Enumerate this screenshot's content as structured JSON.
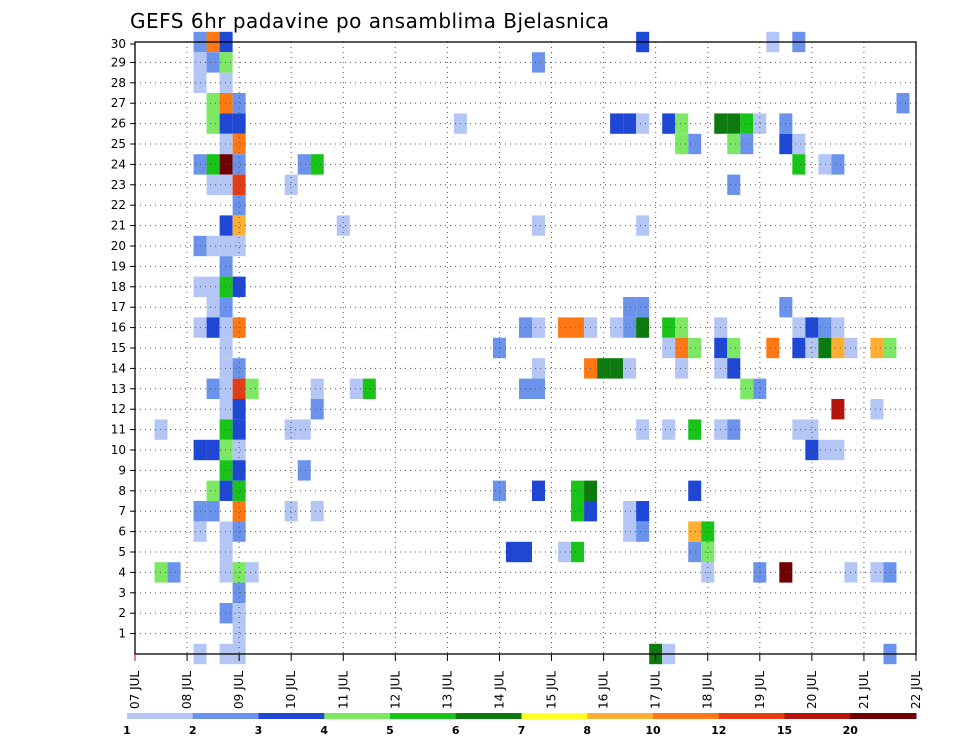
{
  "chart_data": {
    "type": "heatmap",
    "title": "GEFS 6hr padavine po ansamblima Bjelasnica",
    "x_tick_labels": [
      "07 JUL",
      "08 JUL",
      "09 JUL",
      "10 JUL",
      "11 JUL",
      "12 JUL",
      "13 JUL",
      "14 JUL",
      "15 JUL",
      "16 JUL",
      "17 JUL",
      "18 JUL",
      "19 JUL",
      "20 JUL",
      "21 JUL",
      "22 JUL"
    ],
    "y_tick_labels": [
      "1",
      "2",
      "3",
      "4",
      "5",
      "6",
      "7",
      "8",
      "9",
      "10",
      "11",
      "12",
      "13",
      "14",
      "15",
      "16",
      "17",
      "18",
      "19",
      "20",
      "21",
      "22",
      "23",
      "24",
      "25",
      "26",
      "27",
      "28",
      "29",
      "30"
    ],
    "x_range_days": [
      0,
      15
    ],
    "y_range": [
      0,
      30
    ],
    "grid": true,
    "colorbar": {
      "labels": [
        "1",
        "2",
        "3",
        "4",
        "5",
        "6",
        "7",
        "8",
        "10",
        "12",
        "15",
        "20"
      ],
      "colors": [
        "#b3c6f5",
        "#6b93ec",
        "#1f47d6",
        "#7de863",
        "#18c418",
        "#0c7a0c",
        "#ffff22",
        "#ffb032",
        "#ff7814",
        "#e43c14",
        "#b4140c",
        "#700000"
      ]
    },
    "cells": [
      [
        1.25,
        30,
        2
      ],
      [
        1.5,
        30,
        10
      ],
      [
        1.75,
        30,
        3
      ],
      [
        9.75,
        30,
        3
      ],
      [
        12.25,
        30,
        1
      ],
      [
        12.75,
        30,
        2
      ],
      [
        1.25,
        29,
        1
      ],
      [
        1.5,
        29,
        2
      ],
      [
        1.75,
        29,
        4
      ],
      [
        7.75,
        29,
        2
      ],
      [
        1.25,
        28,
        1
      ],
      [
        1.75,
        28,
        1
      ],
      [
        1.5,
        27,
        4
      ],
      [
        1.75,
        27,
        10
      ],
      [
        2.0,
        27,
        2
      ],
      [
        14.75,
        27,
        2
      ],
      [
        1.5,
        26,
        4
      ],
      [
        1.75,
        26,
        3
      ],
      [
        2.0,
        26,
        3
      ],
      [
        6.25,
        26,
        1
      ],
      [
        9.25,
        26,
        3
      ],
      [
        9.5,
        26,
        3
      ],
      [
        9.75,
        26,
        1
      ],
      [
        10.25,
        26,
        3
      ],
      [
        10.5,
        26,
        4
      ],
      [
        11.25,
        26,
        6
      ],
      [
        11.5,
        26,
        6
      ],
      [
        11.75,
        26,
        5
      ],
      [
        12.0,
        26,
        1
      ],
      [
        12.5,
        26,
        2
      ],
      [
        1.75,
        25,
        1
      ],
      [
        2.0,
        25,
        10
      ],
      [
        10.5,
        25,
        4
      ],
      [
        10.75,
        25,
        2
      ],
      [
        11.5,
        25,
        4
      ],
      [
        11.75,
        25,
        2
      ],
      [
        12.5,
        25,
        3
      ],
      [
        12.75,
        25,
        1
      ],
      [
        1.25,
        24,
        2
      ],
      [
        1.5,
        24,
        5
      ],
      [
        1.75,
        24,
        20
      ],
      [
        2.0,
        24,
        2
      ],
      [
        3.25,
        24,
        2
      ],
      [
        3.5,
        24,
        5
      ],
      [
        12.75,
        24,
        5
      ],
      [
        13.25,
        24,
        1
      ],
      [
        13.5,
        24,
        2
      ],
      [
        1.5,
        23,
        1
      ],
      [
        1.75,
        23,
        1
      ],
      [
        2.0,
        23,
        12
      ],
      [
        3.0,
        23,
        1
      ],
      [
        11.5,
        23,
        2
      ],
      [
        2.0,
        22,
        2
      ],
      [
        1.75,
        21,
        3
      ],
      [
        2.0,
        21,
        8
      ],
      [
        4.0,
        21,
        1
      ],
      [
        7.75,
        21,
        1
      ],
      [
        9.75,
        21,
        1
      ],
      [
        1.25,
        20,
        2
      ],
      [
        1.5,
        20,
        1
      ],
      [
        1.75,
        20,
        1
      ],
      [
        2.0,
        20,
        1
      ],
      [
        1.75,
        19,
        2
      ],
      [
        1.25,
        18,
        1
      ],
      [
        1.5,
        18,
        1
      ],
      [
        1.75,
        18,
        5
      ],
      [
        2.0,
        18,
        3
      ],
      [
        1.5,
        17,
        1
      ],
      [
        1.75,
        17,
        2
      ],
      [
        9.5,
        17,
        2
      ],
      [
        9.75,
        17,
        2
      ],
      [
        12.5,
        17,
        2
      ],
      [
        1.25,
        16,
        1
      ],
      [
        1.5,
        16,
        3
      ],
      [
        1.75,
        16,
        1
      ],
      [
        2.0,
        16,
        10
      ],
      [
        7.5,
        16,
        2
      ],
      [
        7.75,
        16,
        1
      ],
      [
        8.25,
        16,
        10
      ],
      [
        8.5,
        16,
        10
      ],
      [
        8.75,
        16,
        1
      ],
      [
        9.25,
        16,
        1
      ],
      [
        9.5,
        16,
        2
      ],
      [
        9.75,
        16,
        6
      ],
      [
        10.25,
        16,
        5
      ],
      [
        10.5,
        16,
        4
      ],
      [
        11.25,
        16,
        1
      ],
      [
        12.75,
        16,
        1
      ],
      [
        13.0,
        16,
        3
      ],
      [
        13.25,
        16,
        2
      ],
      [
        13.5,
        16,
        1
      ],
      [
        1.75,
        15,
        1
      ],
      [
        7.0,
        15,
        2
      ],
      [
        10.25,
        15,
        1
      ],
      [
        10.5,
        15,
        10
      ],
      [
        10.75,
        15,
        4
      ],
      [
        11.25,
        15,
        3
      ],
      [
        11.5,
        15,
        4
      ],
      [
        12.25,
        15,
        10
      ],
      [
        12.75,
        15,
        3
      ],
      [
        13.0,
        15,
        1
      ],
      [
        13.25,
        15,
        6
      ],
      [
        13.5,
        15,
        8
      ],
      [
        13.75,
        15,
        1
      ],
      [
        14.25,
        15,
        8
      ],
      [
        14.5,
        15,
        4
      ],
      [
        1.75,
        14,
        1
      ],
      [
        2.0,
        14,
        2
      ],
      [
        7.75,
        14,
        1
      ],
      [
        8.75,
        14,
        10
      ],
      [
        9.0,
        14,
        6
      ],
      [
        9.25,
        14,
        6
      ],
      [
        9.5,
        14,
        1
      ],
      [
        10.5,
        14,
        1
      ],
      [
        11.25,
        14,
        1
      ],
      [
        11.5,
        14,
        3
      ],
      [
        1.5,
        13,
        2
      ],
      [
        1.75,
        13,
        1
      ],
      [
        2.0,
        13,
        12
      ],
      [
        2.25,
        13,
        4
      ],
      [
        3.5,
        13,
        1
      ],
      [
        4.25,
        13,
        1
      ],
      [
        4.5,
        13,
        5
      ],
      [
        7.5,
        13,
        2
      ],
      [
        7.75,
        13,
        2
      ],
      [
        11.75,
        13,
        4
      ],
      [
        12.0,
        13,
        2
      ],
      [
        1.75,
        12,
        1
      ],
      [
        2.0,
        12,
        3
      ],
      [
        3.5,
        12,
        2
      ],
      [
        13.5,
        12,
        15
      ],
      [
        14.25,
        12,
        1
      ],
      [
        0.5,
        11,
        1
      ],
      [
        1.75,
        11,
        5
      ],
      [
        2.0,
        11,
        3
      ],
      [
        3.0,
        11,
        1
      ],
      [
        3.25,
        11,
        1
      ],
      [
        9.75,
        11,
        1
      ],
      [
        10.25,
        11,
        1
      ],
      [
        10.75,
        11,
        5
      ],
      [
        11.25,
        11,
        1
      ],
      [
        11.5,
        11,
        2
      ],
      [
        12.75,
        11,
        1
      ],
      [
        13.0,
        11,
        1
      ],
      [
        1.25,
        10,
        3
      ],
      [
        1.5,
        10,
        3
      ],
      [
        1.75,
        10,
        4
      ],
      [
        2.0,
        10,
        1
      ],
      [
        13.0,
        10,
        3
      ],
      [
        13.25,
        10,
        1
      ],
      [
        13.5,
        10,
        1
      ],
      [
        1.75,
        9,
        5
      ],
      [
        2.0,
        9,
        3
      ],
      [
        3.25,
        9,
        2
      ],
      [
        1.5,
        8,
        4
      ],
      [
        1.75,
        8,
        3
      ],
      [
        2.0,
        8,
        5
      ],
      [
        7.0,
        8,
        2
      ],
      [
        7.75,
        8,
        3
      ],
      [
        8.5,
        8,
        5
      ],
      [
        8.75,
        8,
        6
      ],
      [
        10.75,
        8,
        3
      ],
      [
        1.25,
        7,
        2
      ],
      [
        1.5,
        7,
        2
      ],
      [
        2.0,
        7,
        10
      ],
      [
        3.0,
        7,
        1
      ],
      [
        3.5,
        7,
        1
      ],
      [
        8.5,
        7,
        5
      ],
      [
        8.75,
        7,
        3
      ],
      [
        9.5,
        7,
        1
      ],
      [
        9.75,
        7,
        3
      ],
      [
        1.25,
        6,
        1
      ],
      [
        1.75,
        6,
        1
      ],
      [
        2.0,
        6,
        2
      ],
      [
        9.5,
        6,
        1
      ],
      [
        9.75,
        6,
        2
      ],
      [
        10.75,
        6,
        8
      ],
      [
        11.0,
        6,
        5
      ],
      [
        1.75,
        5,
        1
      ],
      [
        7.25,
        5,
        3
      ],
      [
        7.5,
        5,
        3
      ],
      [
        8.25,
        5,
        1
      ],
      [
        8.5,
        5,
        5
      ],
      [
        10.75,
        5,
        2
      ],
      [
        11.0,
        5,
        4
      ],
      [
        0.5,
        4,
        4
      ],
      [
        0.75,
        4,
        2
      ],
      [
        1.75,
        4,
        1
      ],
      [
        2.0,
        4,
        4
      ],
      [
        2.25,
        4,
        1
      ],
      [
        11.0,
        4,
        1
      ],
      [
        12.0,
        4,
        2
      ],
      [
        12.5,
        4,
        20
      ],
      [
        13.75,
        4,
        1
      ],
      [
        14.25,
        4,
        1
      ],
      [
        14.5,
        4,
        2
      ],
      [
        2.0,
        3,
        2
      ],
      [
        1.75,
        2,
        2
      ],
      [
        2.0,
        2,
        1
      ],
      [
        2.0,
        1,
        1
      ],
      [
        1.25,
        0,
        1
      ],
      [
        1.75,
        0,
        1
      ],
      [
        2.0,
        0,
        1
      ],
      [
        10.0,
        0,
        6
      ],
      [
        10.25,
        0,
        1
      ],
      [
        14.5,
        0,
        2
      ]
    ]
  }
}
